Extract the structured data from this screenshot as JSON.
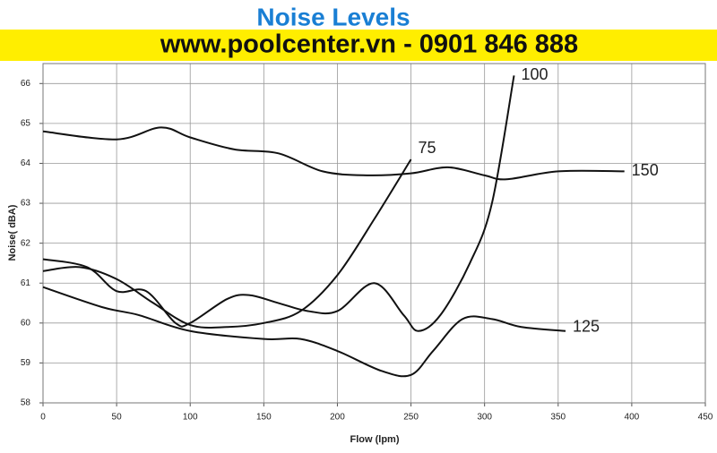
{
  "chart_data": {
    "type": "line",
    "title": "Noise Levels",
    "subtitle": "www.poolcenter.vn - 0901 846 888",
    "x_label": "Flow (lpm)",
    "y_label": "Noise( dBA)",
    "xlim": [
      0,
      450
    ],
    "xticks": [
      0,
      50,
      100,
      150,
      200,
      250,
      300,
      350,
      400,
      450
    ],
    "ylim": [
      58,
      66.5
    ],
    "yticks": [
      58,
      59,
      60,
      61,
      62,
      63,
      64,
      65,
      66
    ],
    "grid": true,
    "series": [
      {
        "name": "75",
        "color": "#111111",
        "x": [
          0,
          25,
          50,
          75,
          100,
          125,
          150,
          175,
          200,
          225,
          250
        ],
        "values": [
          61.3,
          61.4,
          61.1,
          60.5,
          59.95,
          59.9,
          60.0,
          60.3,
          61.2,
          62.6,
          64.1
        ]
      },
      {
        "name": "100",
        "color": "#111111",
        "x": [
          0,
          30,
          50,
          70,
          90,
          100,
          125,
          140,
          160,
          180,
          200,
          225,
          245,
          255,
          270,
          290,
          305,
          320
        ],
        "values": [
          61.6,
          61.4,
          60.8,
          60.8,
          60.0,
          60.0,
          60.6,
          60.7,
          60.5,
          60.3,
          60.3,
          61.0,
          60.2,
          59.8,
          60.2,
          61.5,
          63.0,
          66.2
        ]
      },
      {
        "name": "125",
        "color": "#111111",
        "x": [
          0,
          40,
          65,
          100,
          150,
          175,
          200,
          230,
          250,
          265,
          285,
          305,
          325,
          355
        ],
        "values": [
          60.9,
          60.4,
          60.2,
          59.8,
          59.6,
          59.6,
          59.3,
          58.8,
          58.7,
          59.3,
          60.1,
          60.1,
          59.9,
          59.8
        ]
      },
      {
        "name": "150",
        "color": "#111111",
        "x": [
          0,
          50,
          80,
          100,
          130,
          160,
          190,
          220,
          250,
          275,
          300,
          315,
          350,
          395
        ],
        "values": [
          64.8,
          64.6,
          64.9,
          64.65,
          64.35,
          64.25,
          63.8,
          63.7,
          63.75,
          63.9,
          63.7,
          63.6,
          63.8,
          63.8
        ]
      }
    ]
  }
}
